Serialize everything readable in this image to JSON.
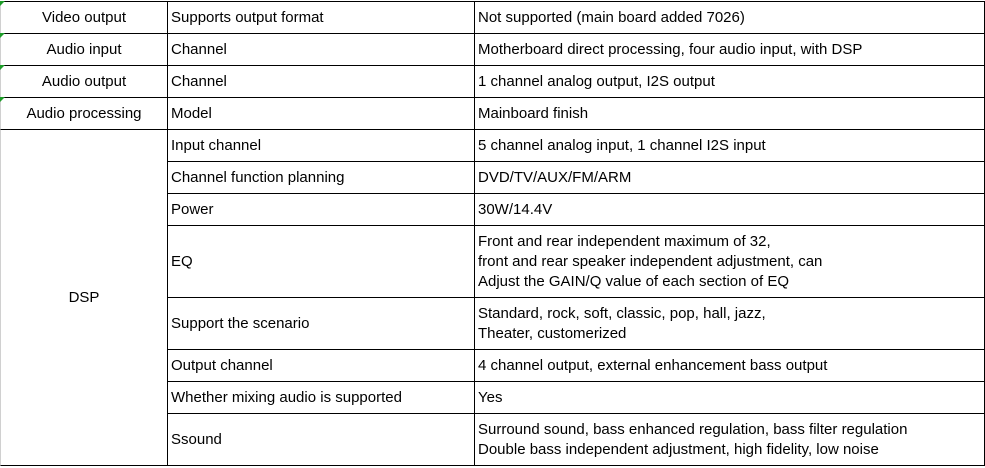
{
  "table": {
    "groups": [
      {
        "category": "Video output",
        "rows": [
          {
            "item": "Supports output format",
            "value": [
              "Not supported (main board added 7026)"
            ]
          }
        ]
      },
      {
        "category": "Audio input",
        "rows": [
          {
            "item": "Channel",
            "value": [
              "Motherboard direct processing, four audio input, with DSP"
            ]
          }
        ]
      },
      {
        "category": "Audio output",
        "rows": [
          {
            "item": "Channel",
            "value": [
              "1 channel analog output, I2S output"
            ]
          }
        ]
      },
      {
        "category": "Audio processing",
        "rows": [
          {
            "item": "Model",
            "value": [
              "Mainboard finish"
            ]
          }
        ]
      },
      {
        "category": "DSP",
        "rows": [
          {
            "item": "Input channel",
            "value": [
              "5 channel analog input, 1 channel I2S input"
            ]
          },
          {
            "item": "Channel function planning",
            "value": [
              "DVD/TV/AUX/FM/ARM"
            ]
          },
          {
            "item": "Power",
            "value": [
              "30W/14.4V"
            ]
          },
          {
            "item": "EQ",
            "value": [
              "Front and rear independent maximum of 32,",
              "front and rear speaker independent adjustment, can",
              "Adjust the GAIN/Q value of each section of EQ"
            ]
          },
          {
            "item": "Support the scenario",
            "value": [
              "Standard, rock, soft, classic, pop, hall, jazz,",
              "Theater, customerized"
            ]
          },
          {
            "item": "Output channel",
            "value": [
              "4 channel output, external enhancement bass output"
            ]
          },
          {
            "item": "Whether mixing audio is supported",
            "value": [
              "Yes"
            ]
          },
          {
            "item": "Ssound",
            "value": [
              "Surround sound, bass enhanced regulation, bass filter regulation",
              "Double bass independent adjustment, high fidelity, low noise"
            ]
          }
        ]
      }
    ]
  }
}
